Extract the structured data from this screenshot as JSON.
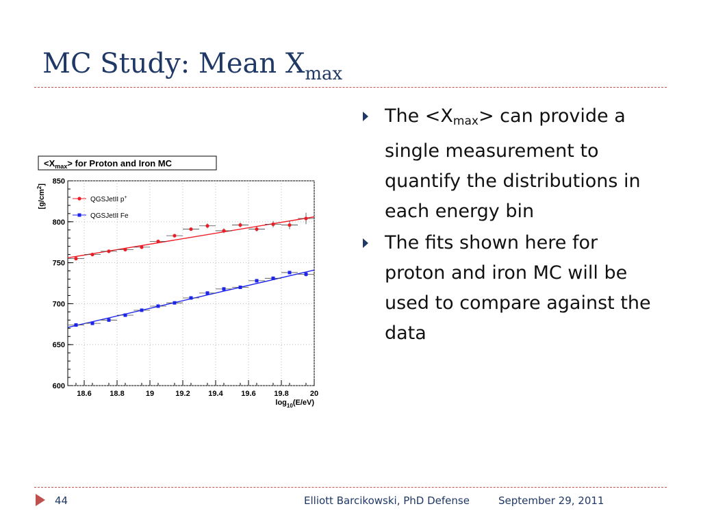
{
  "slide": {
    "title_main": "MC Study: Mean X",
    "title_sub": "max",
    "bullets": [
      {
        "pre": "The <X",
        "sub": "max",
        "post": "> can provide a single measurement to quantify the distributions in each energy bin"
      },
      {
        "pre": "The fits shown here for proton and iron MC will be used to compare against the data",
        "sub": "",
        "post": ""
      }
    ],
    "footer": {
      "page": "44",
      "author": "Elliott Barcikowski, PhD Defense",
      "date": "September 29, 2011"
    }
  },
  "colors": {
    "title": "#1f3864",
    "accent": "#c0504d",
    "proton": "#ee1c24",
    "iron": "#1c24ee"
  },
  "chart_data": {
    "type": "scatter",
    "title": "<Xmax> for Proton and Iron MC",
    "xlabel": "log10(E/eV)",
    "ylabel": "[g/cm2]",
    "xlim": [
      18.5,
      20.0
    ],
    "ylim": [
      600,
      850
    ],
    "xticks": [
      "18.6",
      "18.8",
      "19",
      "19.2",
      "19.4",
      "19.6",
      "19.8",
      "20"
    ],
    "yticks": [
      "600",
      "650",
      "700",
      "750",
      "800",
      "850"
    ],
    "legend_position": "top-left",
    "series": [
      {
        "name": "QGSJetII p+",
        "marker": "circle",
        "x": [
          18.55,
          18.65,
          18.75,
          18.85,
          18.95,
          19.05,
          19.15,
          19.25,
          19.35,
          19.45,
          19.55,
          19.65,
          19.75,
          19.85,
          19.95
        ],
        "y": [
          755,
          760,
          764,
          766,
          769,
          776,
          783,
          791,
          795,
          789,
          796,
          791,
          797,
          796,
          804
        ],
        "yerr": [
          1,
          1,
          1,
          1,
          2,
          2,
          2,
          2,
          3,
          3,
          3,
          3,
          4,
          5,
          7
        ],
        "fit": {
          "x": [
            18.5,
            20.0
          ],
          "y": [
            756,
            806
          ]
        }
      },
      {
        "name": "QGSJetII Fe",
        "marker": "square",
        "x": [
          18.55,
          18.65,
          18.75,
          18.85,
          18.95,
          19.05,
          19.15,
          19.25,
          19.35,
          19.45,
          19.55,
          19.65,
          19.75,
          19.85,
          19.95
        ],
        "y": [
          674,
          676,
          680,
          686,
          692,
          697,
          701,
          707,
          713,
          718,
          720,
          728,
          731,
          738,
          736
        ],
        "yerr": [
          1,
          1,
          1,
          1,
          1,
          1,
          1,
          1,
          1,
          1,
          2,
          2,
          2,
          2,
          3
        ],
        "fit": {
          "x": [
            18.5,
            20.0
          ],
          "y": [
            671,
            741
          ]
        }
      }
    ]
  }
}
